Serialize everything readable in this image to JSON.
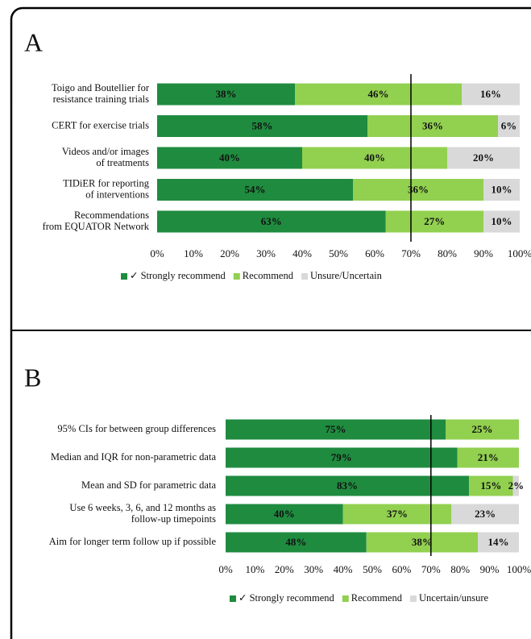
{
  "charts": [
    {
      "chart_data": {
        "type": "stacked_barh",
        "panel": "A",
        "categories": [
          [
            "Toigo and Boutellier for",
            "resistance training trials"
          ],
          [
            "CERT for exercise trials"
          ],
          [
            "Videos and/or images",
            "of treatments"
          ],
          [
            "TIDiER for reporting",
            "of interventions"
          ],
          [
            "Recommendations",
            "from EQUATOR Network"
          ]
        ],
        "series": [
          {
            "name": "✓ Strongly recommend",
            "color": "#1f8b3f",
            "values": [
              38,
              58,
              40,
              54,
              63
            ],
            "value_labels": [
              "38%",
              "58%",
              "40%",
              "54%",
              "63%"
            ]
          },
          {
            "name": "Recommend",
            "color": "#92d050",
            "values": [
              46,
              36,
              40,
              36,
              27
            ],
            "value_labels": [
              "46%",
              "36%",
              "40%",
              "36%",
              "27%"
            ]
          },
          {
            "name": "Unsure/Uncertain",
            "color": "#d9d9d9",
            "values": [
              16,
              6,
              20,
              10,
              10
            ],
            "value_labels": [
              "16%",
              "6%",
              "20%",
              "10%",
              "10%"
            ]
          }
        ],
        "xlim": [
          0,
          100
        ],
        "xticks": [
          {
            "value": 0,
            "label": "0%"
          },
          {
            "value": 10,
            "label": "10%"
          },
          {
            "value": 20,
            "label": "20%"
          },
          {
            "value": 30,
            "label": "30%"
          },
          {
            "value": 40,
            "label": "40%"
          },
          {
            "value": 50,
            "label": "50%"
          },
          {
            "value": 60,
            "label": "60%"
          },
          {
            "value": 70,
            "label": "70%"
          },
          {
            "value": 80,
            "label": "80%"
          },
          {
            "value": 90,
            "label": "90%"
          },
          {
            "value": 100,
            "label": "100%"
          }
        ],
        "reference_line": 70,
        "legend": "bottom"
      }
    },
    {
      "chart_data": {
        "type": "stacked_barh",
        "panel": "B",
        "categories": [
          [
            "95% CIs for between group differences"
          ],
          [
            "Median and IQR for non-parametric data"
          ],
          [
            "Mean and SD for  parametric data"
          ],
          [
            "Use 6 weeks, 3, 6, and 12 months as",
            "follow-up timepoints"
          ],
          [
            "Aim for longer term follow up if possible"
          ]
        ],
        "series": [
          {
            "name": "✓ Strongly recommend",
            "color": "#1f8b3f",
            "values": [
              75,
              79,
              83,
              40,
              48
            ],
            "value_labels": [
              "75%",
              "79%",
              "83%",
              "40%",
              "48%"
            ]
          },
          {
            "name": "Recommend",
            "color": "#92d050",
            "values": [
              25,
              21,
              15,
              37,
              38
            ],
            "value_labels": [
              "25%",
              "21%",
              "15%",
              "37%",
              "38%"
            ]
          },
          {
            "name": "Uncertain/unsure",
            "color": "#d9d9d9",
            "values": [
              0,
              0,
              2,
              23,
              14
            ],
            "value_labels": [
              null,
              null,
              "2%",
              "23%",
              "14%"
            ]
          }
        ],
        "xlim": [
          0,
          100
        ],
        "xticks": [
          {
            "value": 0,
            "label": "0%"
          },
          {
            "value": 10,
            "label": "10%"
          },
          {
            "value": 20,
            "label": "20%"
          },
          {
            "value": 30,
            "label": "30%"
          },
          {
            "value": 40,
            "label": "40%"
          },
          {
            "value": 50,
            "label": "50%"
          },
          {
            "value": 60,
            "label": "60%"
          },
          {
            "value": 70,
            "label": "70%"
          },
          {
            "value": 80,
            "label": "80%"
          },
          {
            "value": 90,
            "label": "90%"
          },
          {
            "value": 100,
            "label": "100%"
          }
        ],
        "reference_line": 70,
        "legend": "bottom"
      }
    }
  ]
}
